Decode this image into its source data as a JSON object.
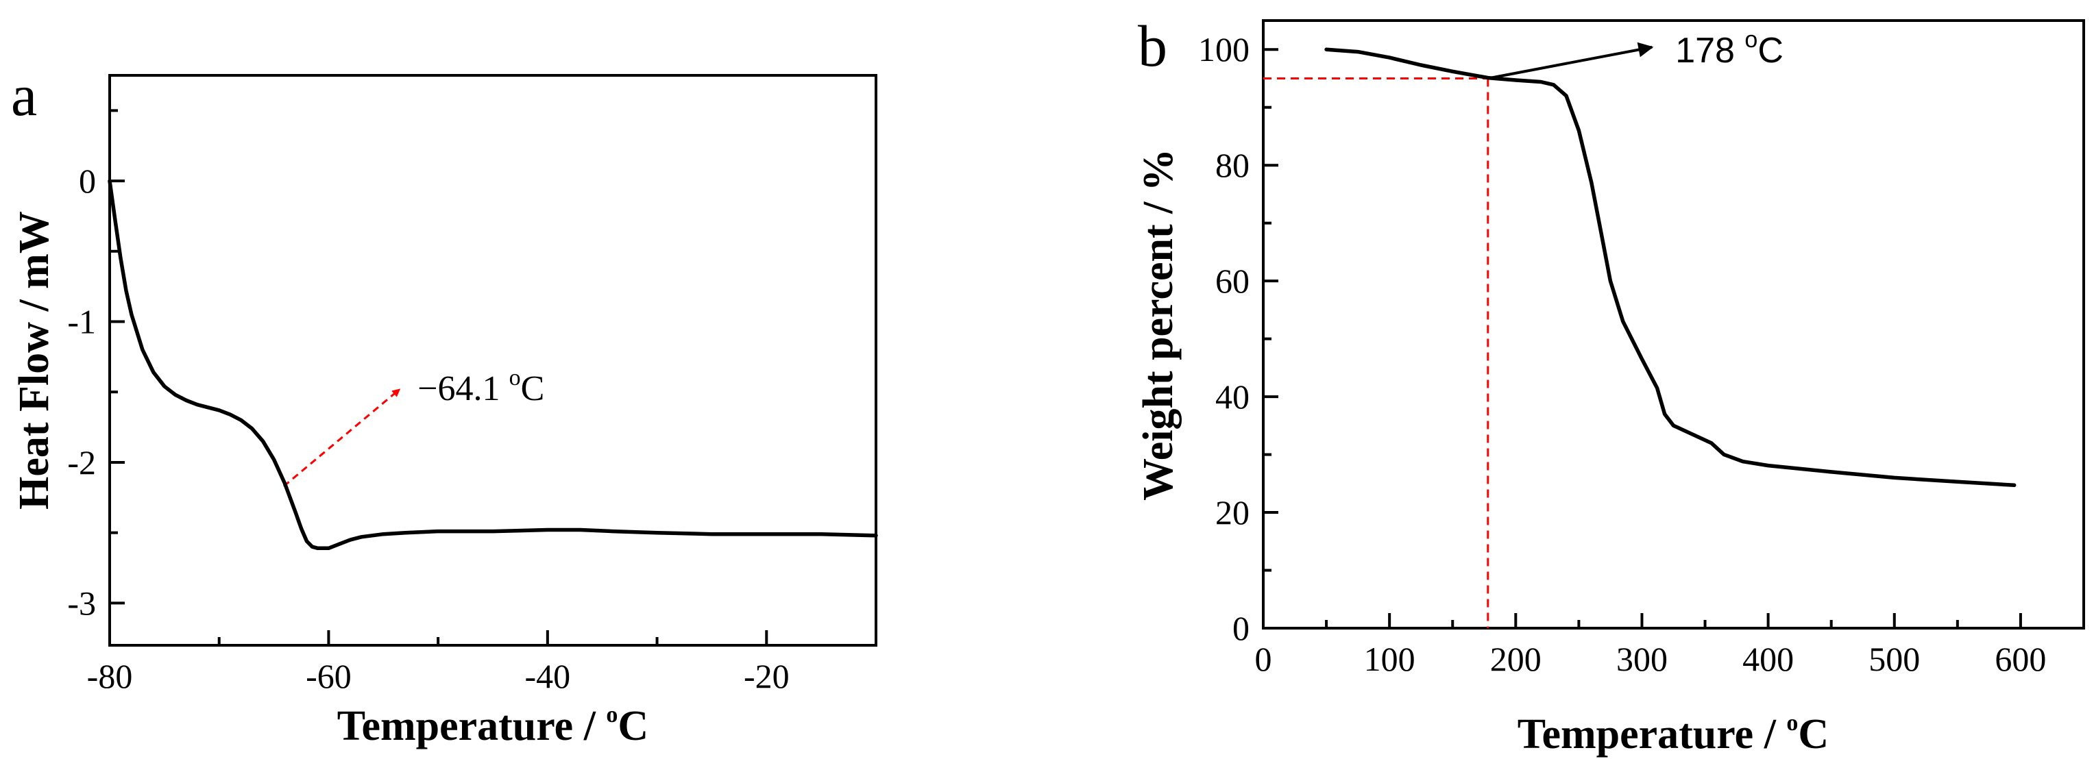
{
  "chart_data": [
    {
      "type": "line",
      "panel_label": "a",
      "xlabel": "Temperature / ",
      "xlabel_sup": "o",
      "xlabel_tail": "C",
      "ylabel": "Heat Flow / mW",
      "xlim": [
        -80,
        -10
      ],
      "ylim": [
        -3.3,
        0.75
      ],
      "xticks": [
        -80,
        -60,
        -40,
        -20
      ],
      "yticks": [
        0,
        -1,
        -2,
        -3
      ],
      "xtick_labels": [
        "-80",
        "-60",
        "-40",
        "-20"
      ],
      "ytick_labels": [
        "0",
        "-1",
        "-2",
        "-3"
      ],
      "minor_xticks": [
        -70,
        -50,
        -30
      ],
      "minor_yticks": [
        0.5,
        -0.5,
        -1.5,
        -2.5
      ],
      "grid": false,
      "line_color": "#000000",
      "annotation": {
        "text": "−64.1 ",
        "sup": "o",
        "tail": "C",
        "point": [
          -64.1,
          -2.17
        ],
        "arrow_to": [
          -53.5,
          -1.48
        ],
        "color": "#ff0000"
      },
      "series": [
        {
          "points": [
            [
              -80.0,
              0.0
            ],
            [
              -79.5,
              -0.28
            ],
            [
              -79.0,
              -0.55
            ],
            [
              -78.5,
              -0.78
            ],
            [
              -78.0,
              -0.95
            ],
            [
              -77.0,
              -1.2
            ],
            [
              -76.0,
              -1.36
            ],
            [
              -75.0,
              -1.46
            ],
            [
              -74.0,
              -1.52
            ],
            [
              -73.0,
              -1.56
            ],
            [
              -72.0,
              -1.59
            ],
            [
              -71.0,
              -1.61
            ],
            [
              -70.0,
              -1.63
            ],
            [
              -69.0,
              -1.66
            ],
            [
              -68.0,
              -1.7
            ],
            [
              -67.0,
              -1.76
            ],
            [
              -66.0,
              -1.85
            ],
            [
              -65.0,
              -1.98
            ],
            [
              -64.0,
              -2.15
            ],
            [
              -63.0,
              -2.36
            ],
            [
              -62.5,
              -2.47
            ],
            [
              -62.0,
              -2.56
            ],
            [
              -61.5,
              -2.6
            ],
            [
              -61.0,
              -2.61
            ],
            [
              -60.0,
              -2.61
            ],
            [
              -59.0,
              -2.58
            ],
            [
              -58.0,
              -2.55
            ],
            [
              -57.0,
              -2.53
            ],
            [
              -55.0,
              -2.51
            ],
            [
              -53.0,
              -2.5
            ],
            [
              -50.0,
              -2.49
            ],
            [
              -45.0,
              -2.49
            ],
            [
              -40.0,
              -2.48
            ],
            [
              -37.0,
              -2.48
            ],
            [
              -34.0,
              -2.49
            ],
            [
              -30.0,
              -2.5
            ],
            [
              -25.0,
              -2.51
            ],
            [
              -20.0,
              -2.51
            ],
            [
              -15.0,
              -2.51
            ],
            [
              -10.0,
              -2.52
            ]
          ]
        }
      ]
    },
    {
      "type": "line",
      "panel_label": "b",
      "xlabel": "Temperature / ",
      "xlabel_sup": "o",
      "xlabel_tail": "C",
      "ylabel": "Weight percent / %",
      "xlim": [
        0,
        650
      ],
      "ylim": [
        0,
        105
      ],
      "xticks": [
        0,
        100,
        200,
        300,
        400,
        500,
        600
      ],
      "yticks": [
        0,
        20,
        40,
        60,
        80,
        100
      ],
      "xtick_labels": [
        "0",
        "100",
        "200",
        "300",
        "400",
        "500",
        "600"
      ],
      "ytick_labels": [
        "0",
        "20",
        "40",
        "60",
        "80",
        "100"
      ],
      "minor_xticks": [
        50,
        150,
        250,
        350,
        450,
        550
      ],
      "minor_yticks": [
        10,
        30,
        50,
        70,
        90
      ],
      "grid": false,
      "line_color": "#000000",
      "annotation": {
        "text": "178 ",
        "sup": "o",
        "tail": "C",
        "point": [
          178,
          95
        ],
        "arrow_to": [
          308,
          100.4
        ],
        "guide_value": 95,
        "guide_x": 178,
        "color": "#ff0000"
      },
      "series": [
        {
          "points": [
            [
              50,
              100.0
            ],
            [
              75,
              99.6
            ],
            [
              100,
              98.6
            ],
            [
              125,
              97.3
            ],
            [
              150,
              96.2
            ],
            [
              178,
              95.1
            ],
            [
              200,
              94.7
            ],
            [
              220,
              94.4
            ],
            [
              230,
              93.9
            ],
            [
              240,
              92.0
            ],
            [
              250,
              86.0
            ],
            [
              260,
              77.0
            ],
            [
              268,
              68.0
            ],
            [
              275,
              60.0
            ],
            [
              285,
              53.0
            ],
            [
              300,
              46.5
            ],
            [
              312,
              41.5
            ],
            [
              318,
              37.0
            ],
            [
              325,
              35.0
            ],
            [
              340,
              33.5
            ],
            [
              355,
              32.0
            ],
            [
              365,
              30.0
            ],
            [
              380,
              28.8
            ],
            [
              400,
              28.1
            ],
            [
              450,
              27.0
            ],
            [
              500,
              26.0
            ],
            [
              550,
              25.3
            ],
            [
              595,
              24.7
            ]
          ]
        }
      ]
    }
  ]
}
